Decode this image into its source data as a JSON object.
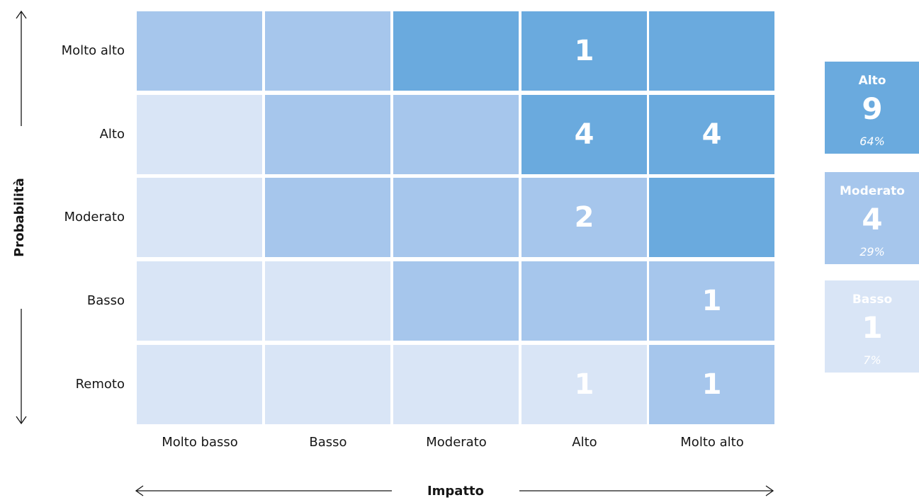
{
  "colors": {
    "Alto": "#6aaade",
    "Moderato": "#a6c6ec",
    "Basso": "#d9e5f6",
    "text": "#161616",
    "value_text": "#ffffff"
  },
  "chart_data": {
    "type": "heatmap",
    "title": "",
    "xlabel": "Impatto",
    "ylabel": "Probabilità",
    "x_categories": [
      "Molto basso",
      "Basso",
      "Moderato",
      "Alto",
      "Molto alto"
    ],
    "y_categories": [
      "Molto alto",
      "Alto",
      "Moderato",
      "Basso",
      "Remoto"
    ],
    "risk_levels": [
      [
        "Moderato",
        "Moderato",
        "Alto",
        "Alto",
        "Alto"
      ],
      [
        "Basso",
        "Moderato",
        "Moderato",
        "Alto",
        "Alto"
      ],
      [
        "Basso",
        "Moderato",
        "Moderato",
        "Moderato",
        "Alto"
      ],
      [
        "Basso",
        "Basso",
        "Moderato",
        "Moderato",
        "Moderato"
      ],
      [
        "Basso",
        "Basso",
        "Basso",
        "Basso",
        "Moderato"
      ]
    ],
    "values": [
      [
        null,
        null,
        null,
        1,
        null
      ],
      [
        null,
        null,
        null,
        4,
        4
      ],
      [
        null,
        null,
        null,
        2,
        null
      ],
      [
        null,
        null,
        null,
        null,
        1
      ],
      [
        null,
        null,
        null,
        1,
        1
      ]
    ],
    "summary": [
      {
        "level": "Alto",
        "count": "9",
        "percent": "64%"
      },
      {
        "level": "Moderato",
        "count": "4",
        "percent": "29%"
      },
      {
        "level": "Basso",
        "count": "1",
        "percent": "7%"
      }
    ]
  }
}
